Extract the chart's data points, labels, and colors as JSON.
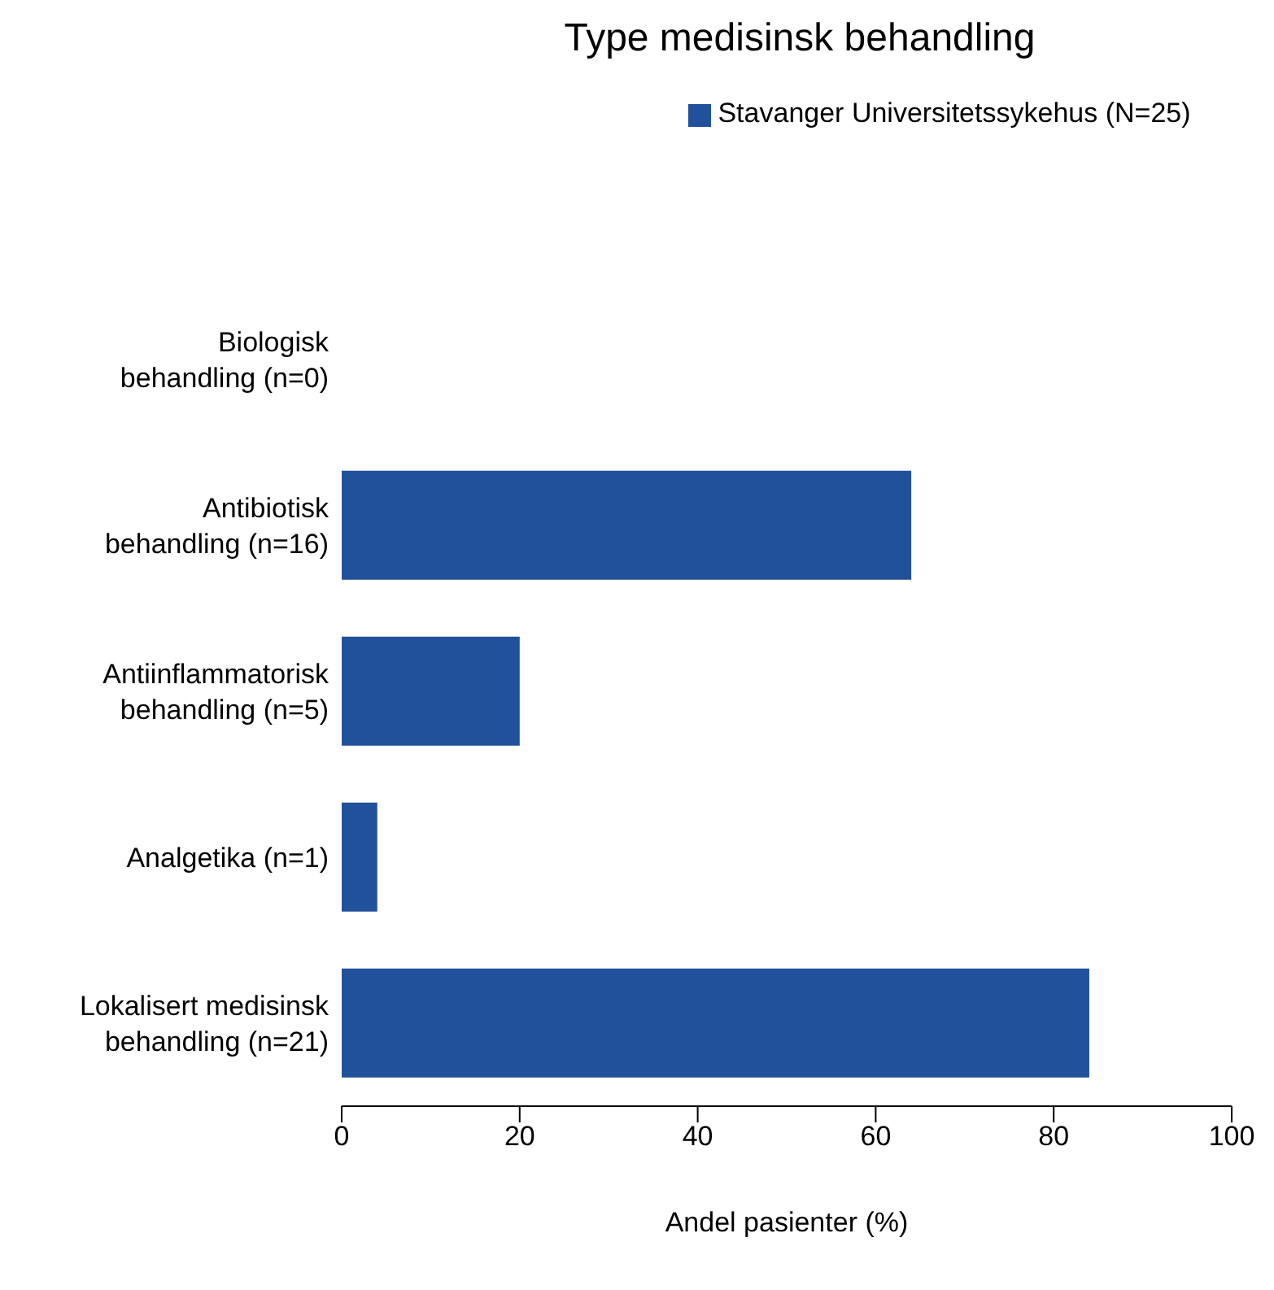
{
  "chart_data": {
    "type": "bar",
    "orientation": "horizontal",
    "title": "Type medisinsk behandling",
    "xlabel": "Andel pasienter (%)",
    "categories": [
      "Biologisk\nbehandling (n=0)",
      "Antibiotisk\nbehandling (n=16)",
      "Antiinflammatorisk\nbehandling (n=5)",
      "Analgetika (n=1)",
      "Lokalisert medisinsk\nbehandling (n=21)"
    ],
    "series": [
      {
        "name": "Stavanger Universitetssykehus (N=25)",
        "color": "#21519a",
        "values": [
          0,
          64,
          20,
          4,
          84
        ]
      }
    ],
    "xlim": [
      0,
      100
    ],
    "xticks": [
      0,
      20,
      40,
      60,
      80,
      100
    ],
    "grid": false,
    "legend": "top"
  }
}
